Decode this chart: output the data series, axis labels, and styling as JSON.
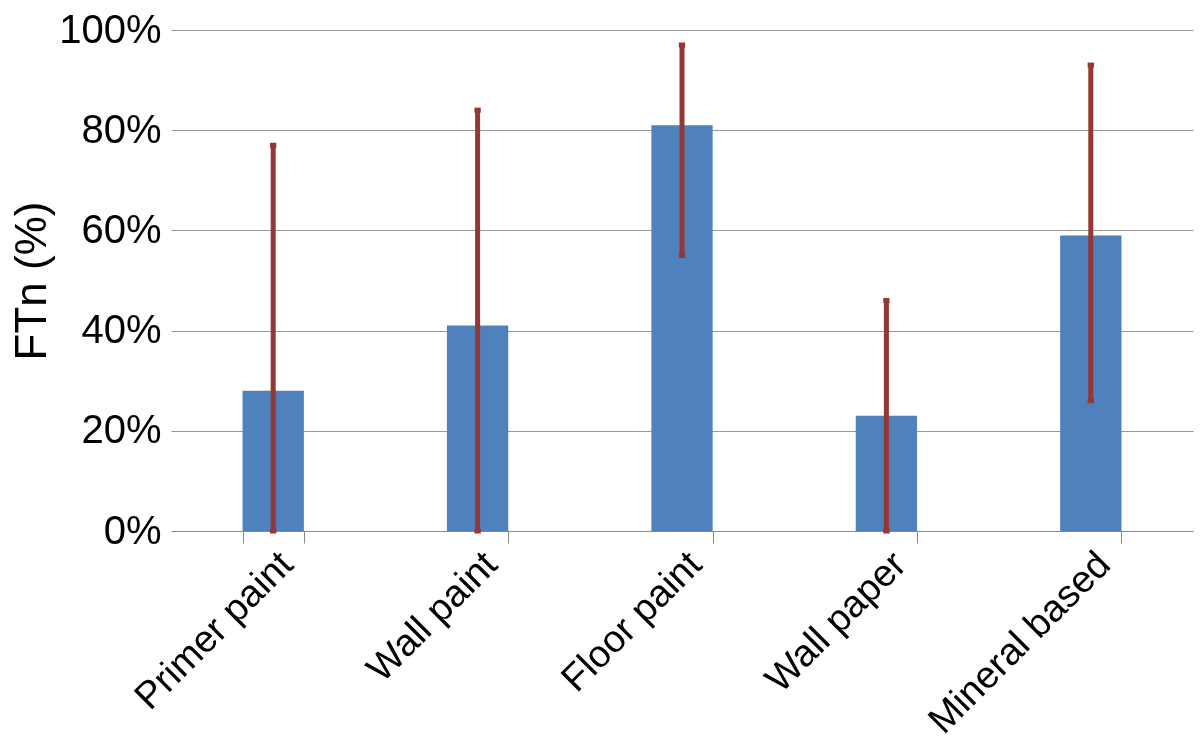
{
  "chart_data": {
    "type": "bar",
    "ylabel": "FTn (%)",
    "categories": [
      "Primer paint",
      "Wall paint",
      "Floor paint",
      "Wall paper",
      "Mineral based"
    ],
    "values": [
      28,
      41,
      81,
      23,
      59
    ],
    "color": "#4f81bd",
    "errors": [
      [
        0,
        77
      ],
      [
        0,
        84
      ],
      [
        55,
        97
      ],
      [
        0,
        46
      ],
      [
        26,
        93
      ]
    ],
    "ylim": [
      0,
      100
    ],
    "yticks": [
      {
        "value": 0,
        "label": "0%"
      },
      {
        "value": 20,
        "label": "20%"
      },
      {
        "value": 40,
        "label": "40%"
      },
      {
        "value": 60,
        "label": "60%"
      },
      {
        "value": 80,
        "label": "80%"
      },
      {
        "value": 100,
        "label": "100%"
      }
    ],
    "grid": "y"
  }
}
